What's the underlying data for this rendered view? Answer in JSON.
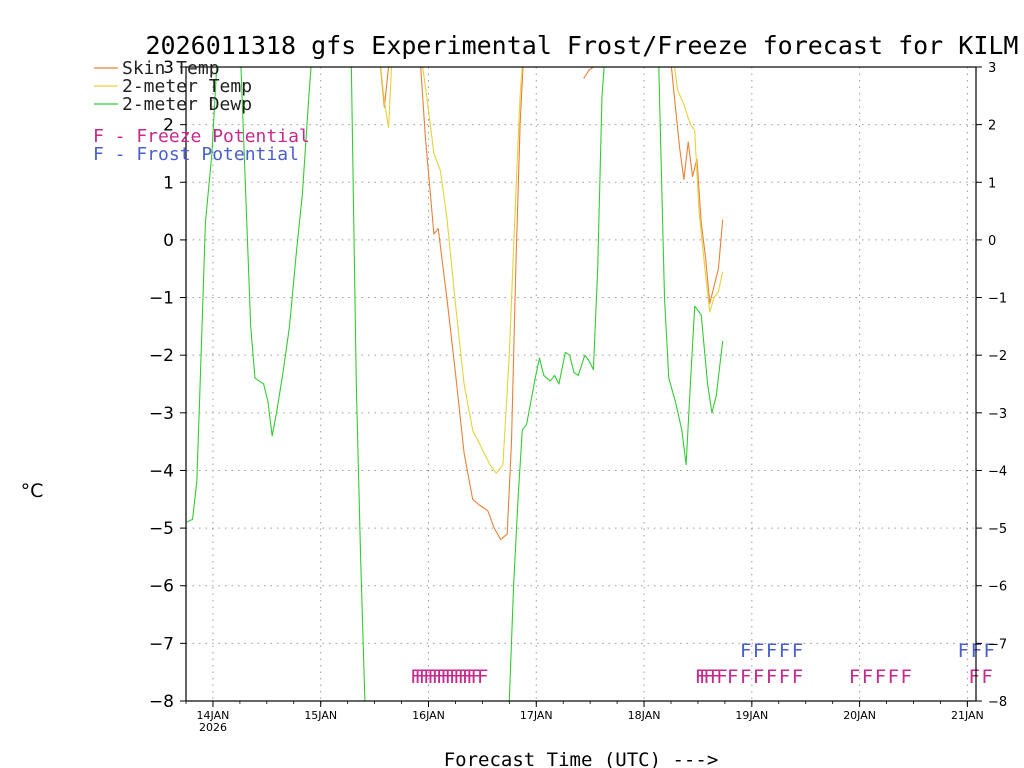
{
  "chart_data": {
    "type": "line",
    "title": "2026011318 gfs Experimental Frost/Freeze forecast for KILM",
    "ylabel": "°C",
    "xlabel": "Forecast Time (UTC) --->",
    "ylim": [
      -8,
      3
    ],
    "xlim": [
      0,
      7.33
    ],
    "x_units": "days after 14JAN 00Z minus 0.25",
    "y_ticks": [
      3,
      2,
      1,
      0,
      -1,
      -2,
      -3,
      -4,
      -5,
      -6,
      -7,
      -8
    ],
    "y_tick_labels": [
      "3",
      "2",
      "1",
      "0",
      "−1",
      "−2",
      "−3",
      "−4",
      "−5",
      "−6",
      "−7",
      "−8"
    ],
    "x_ticks": [
      0.25,
      1.25,
      2.25,
      3.25,
      4.25,
      5.25,
      6.25,
      7.25
    ],
    "x_tick_labels": [
      "14JAN",
      "15JAN",
      "16JAN",
      "17JAN",
      "18JAN",
      "19JAN",
      "20JAN",
      "21JAN"
    ],
    "x_tick_sublabel": "2026",
    "grid": true,
    "legend_position": "top-left",
    "series": [
      {
        "name": "Skin Temp",
        "color": "#e8803a",
        "points": [
          [
            1.78,
            3.5
          ],
          [
            1.84,
            2.3
          ],
          [
            1.88,
            3.0
          ],
          [
            1.92,
            3.5
          ],
          [
            null,
            null
          ],
          [
            2.16,
            3.5
          ],
          [
            2.22,
            1.8
          ],
          [
            2.3,
            0.1
          ],
          [
            2.34,
            0.2
          ],
          [
            2.42,
            -1.0
          ],
          [
            2.5,
            -2.3
          ],
          [
            2.58,
            -3.7
          ],
          [
            2.66,
            -4.5
          ],
          [
            2.72,
            -4.6
          ],
          [
            2.8,
            -4.7
          ],
          [
            2.86,
            -5.0
          ],
          [
            2.92,
            -5.2
          ],
          [
            2.98,
            -5.1
          ],
          [
            3.02,
            -3.5
          ],
          [
            3.06,
            -0.5
          ],
          [
            3.1,
            2.0
          ],
          [
            3.14,
            3.5
          ],
          [
            null,
            null
          ],
          [
            3.69,
            2.8
          ],
          [
            3.74,
            2.95
          ],
          [
            3.78,
            3.0
          ],
          [
            3.82,
            3.1
          ],
          [
            null,
            null
          ],
          [
            4.48,
            3.5
          ],
          [
            4.52,
            2.7
          ],
          [
            4.58,
            1.6
          ],
          [
            4.62,
            1.05
          ],
          [
            4.66,
            1.7
          ],
          [
            4.7,
            1.1
          ],
          [
            4.74,
            1.4
          ],
          [
            4.78,
            0.3
          ],
          [
            4.82,
            -0.3
          ],
          [
            4.86,
            -1.1
          ],
          [
            4.9,
            -0.8
          ],
          [
            4.94,
            -0.5
          ],
          [
            4.98,
            0.35
          ]
        ]
      },
      {
        "name": "2-meter Temp",
        "color": "#e6d23c",
        "points": [
          [
            1.78,
            3.5
          ],
          [
            1.84,
            2.4
          ],
          [
            1.88,
            1.95
          ],
          [
            1.92,
            3.5
          ],
          [
            null,
            null
          ],
          [
            2.16,
            3.5
          ],
          [
            2.24,
            2.4
          ],
          [
            2.3,
            1.5
          ],
          [
            2.36,
            1.2
          ],
          [
            2.42,
            0.4
          ],
          [
            2.5,
            -1.1
          ],
          [
            2.58,
            -2.5
          ],
          [
            2.66,
            -3.3
          ],
          [
            2.74,
            -3.6
          ],
          [
            2.82,
            -3.9
          ],
          [
            2.88,
            -4.05
          ],
          [
            2.94,
            -3.9
          ],
          [
            3.0,
            -2.0
          ],
          [
            3.06,
            0.8
          ],
          [
            3.1,
            2.5
          ],
          [
            3.14,
            3.5
          ],
          [
            null,
            null
          ],
          [
            4.5,
            3.5
          ],
          [
            4.56,
            2.6
          ],
          [
            4.62,
            2.35
          ],
          [
            4.68,
            2.0
          ],
          [
            4.72,
            1.9
          ],
          [
            4.76,
            0.5
          ],
          [
            4.82,
            -0.6
          ],
          [
            4.86,
            -1.25
          ],
          [
            4.9,
            -1.0
          ],
          [
            4.94,
            -0.9
          ],
          [
            4.98,
            -0.55
          ]
        ]
      },
      {
        "name": "2-meter Dewp",
        "color": "#33cc33",
        "points": [
          [
            0.0,
            -4.9
          ],
          [
            0.06,
            -4.85
          ],
          [
            0.1,
            -4.2
          ],
          [
            0.14,
            -2.0
          ],
          [
            0.18,
            0.3
          ],
          [
            0.24,
            1.5
          ],
          [
            0.3,
            3.5
          ],
          [
            null,
            null
          ],
          [
            0.5,
            3.5
          ],
          [
            0.54,
            1.5
          ],
          [
            0.6,
            -1.5
          ],
          [
            0.64,
            -2.4
          ],
          [
            0.68,
            -2.45
          ],
          [
            0.72,
            -2.5
          ],
          [
            0.76,
            -2.8
          ],
          [
            0.8,
            -3.4
          ],
          [
            0.84,
            -3.0
          ],
          [
            0.9,
            -2.3
          ],
          [
            0.96,
            -1.5
          ],
          [
            1.02,
            -0.3
          ],
          [
            1.08,
            0.8
          ],
          [
            1.14,
            2.5
          ],
          [
            1.18,
            3.5
          ],
          [
            null,
            null
          ],
          [
            1.53,
            3.5
          ],
          [
            1.58,
            -2.5
          ],
          [
            1.62,
            -5.5
          ],
          [
            1.66,
            -8.0
          ],
          [
            null,
            null
          ],
          [
            3.0,
            -8.0
          ],
          [
            3.04,
            -6.0
          ],
          [
            3.08,
            -4.5
          ],
          [
            3.12,
            -3.3
          ],
          [
            3.16,
            -3.2
          ],
          [
            3.2,
            -2.8
          ],
          [
            3.24,
            -2.4
          ],
          [
            3.28,
            -2.05
          ],
          [
            3.32,
            -2.35
          ],
          [
            3.38,
            -2.45
          ],
          [
            3.42,
            -2.35
          ],
          [
            3.46,
            -2.5
          ],
          [
            3.52,
            -1.95
          ],
          [
            3.56,
            -2.0
          ],
          [
            3.6,
            -2.3
          ],
          [
            3.64,
            -2.35
          ],
          [
            3.7,
            -2.0
          ],
          [
            3.74,
            -2.1
          ],
          [
            3.78,
            -2.25
          ],
          [
            3.82,
            -0.5
          ],
          [
            3.86,
            2.5
          ],
          [
            3.9,
            3.5
          ],
          [
            null,
            null
          ],
          [
            4.38,
            3.5
          ],
          [
            4.4,
            2.0
          ],
          [
            4.44,
            -1.0
          ],
          [
            4.48,
            -2.4
          ],
          [
            4.54,
            -2.8
          ],
          [
            4.6,
            -3.3
          ],
          [
            4.64,
            -3.9
          ],
          [
            4.68,
            -2.5
          ],
          [
            4.72,
            -1.15
          ],
          [
            4.78,
            -1.3
          ],
          [
            4.84,
            -2.5
          ],
          [
            4.88,
            -3.0
          ],
          [
            4.92,
            -2.7
          ],
          [
            4.98,
            -1.75
          ]
        ]
      }
    ],
    "freeze_potential_marks": {
      "color": "#c72a8c",
      "y": -7.55,
      "x": [
        2.08,
        2.12,
        2.16,
        2.2,
        2.24,
        2.28,
        2.32,
        2.36,
        2.4,
        2.44,
        2.48,
        2.52,
        2.56,
        2.6,
        2.64,
        2.7,
        4.72,
        4.76,
        4.8,
        4.86,
        4.92,
        5.02,
        5.14,
        5.26,
        5.38,
        5.5,
        5.62,
        6.15,
        6.27,
        6.39,
        6.51,
        6.63,
        7.26,
        7.38
      ]
    },
    "frost_potential_marks": {
      "color": "#4a5fcf",
      "y": -7.1,
      "x": [
        5.14,
        5.26,
        5.38,
        5.5,
        5.62,
        7.16,
        7.28,
        7.4
      ]
    },
    "legend": [
      {
        "label": "Skin Temp",
        "color": "#e8803a",
        "kind": "line"
      },
      {
        "label": "2-meter Temp",
        "color": "#e6d23c",
        "kind": "line"
      },
      {
        "label": "2-meter Dewp",
        "color": "#33cc33",
        "kind": "line"
      },
      {
        "label": "F - Freeze Potential",
        "color": "#c72a8c",
        "kind": "letter"
      },
      {
        "label": "F - Frost Potential",
        "color": "#4a5fcf",
        "kind": "letter"
      }
    ],
    "mark_letter": "F"
  }
}
